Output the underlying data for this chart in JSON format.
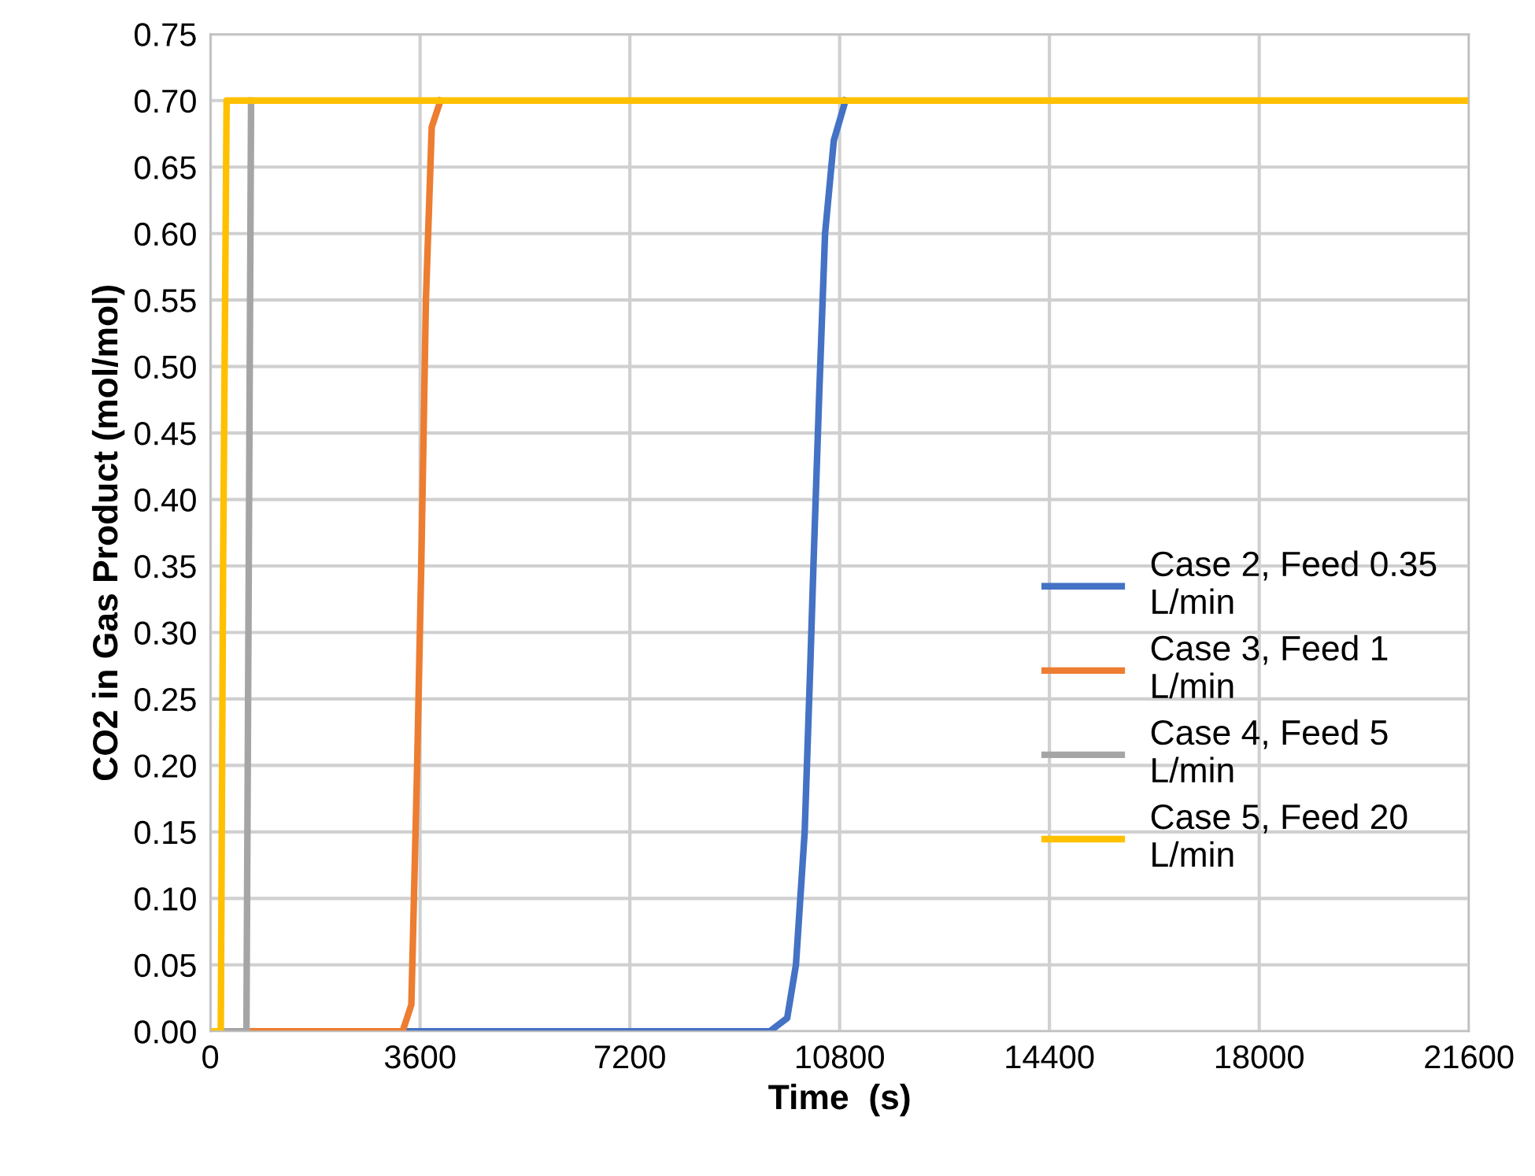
{
  "chart_data": {
    "type": "line",
    "xlabel": "Time  (s)",
    "ylabel": "CO2 in Gas Product (mol/mol)",
    "xlim": [
      0,
      21600
    ],
    "xticks": [
      0,
      3600,
      7200,
      10800,
      14400,
      18000,
      21600
    ],
    "ylim": [
      0,
      0.75
    ],
    "yticks": [
      {
        "value": 0,
        "label": "0.00"
      },
      {
        "value": 0.05,
        "label": "0.05"
      },
      {
        "value": 0.1,
        "label": "0.10"
      },
      {
        "value": 0.15,
        "label": "0.15"
      },
      {
        "value": 0.2,
        "label": "0.20"
      },
      {
        "value": 0.25,
        "label": "0.25"
      },
      {
        "value": 0.3,
        "label": "0.30"
      },
      {
        "value": 0.35,
        "label": "0.35"
      },
      {
        "value": 0.4,
        "label": "0.40"
      },
      {
        "value": 0.45,
        "label": "0.45"
      },
      {
        "value": 0.5,
        "label": "0.50"
      },
      {
        "value": 0.55,
        "label": "0.55"
      },
      {
        "value": 0.6,
        "label": "0.60"
      },
      {
        "value": 0.65,
        "label": "0.65"
      },
      {
        "value": 0.7,
        "label": "0.70"
      },
      {
        "value": 0.75,
        "label": "0.75"
      }
    ],
    "grid": true,
    "legend": "right",
    "line_style": "solid",
    "marker": "none",
    "series": [
      {
        "name": "Case 2, Feed 0.35\nL/min",
        "color": "#4472c4",
        "x": [
          0,
          9600,
          9900,
          10050,
          10200,
          10300,
          10350,
          10450,
          10550,
          10700,
          10900
        ],
        "values": [
          0,
          0,
          0.01,
          0.05,
          0.15,
          0.28,
          0.35,
          0.48,
          0.6,
          0.67,
          0.7
        ]
      },
      {
        "name": "Case 3, Feed 1\nL/min",
        "color": "#ed7d31",
        "x": [
          0,
          3300,
          3450,
          3550,
          3620,
          3700,
          3800,
          3950
        ],
        "values": [
          0,
          0,
          0.02,
          0.2,
          0.35,
          0.55,
          0.68,
          0.7
        ]
      },
      {
        "name": "Case 4, Feed 5\nL/min",
        "color": "#a5a5a5",
        "x": [
          0,
          620,
          660,
          700
        ],
        "values": [
          0,
          0,
          0.35,
          0.7
        ]
      },
      {
        "name": "Case 5, Feed 20\nL/min",
        "color": "#ffc000",
        "x": [
          0,
          180,
          220,
          280,
          21600
        ],
        "values": [
          0,
          0,
          0.35,
          0.7,
          0.7
        ]
      }
    ]
  }
}
